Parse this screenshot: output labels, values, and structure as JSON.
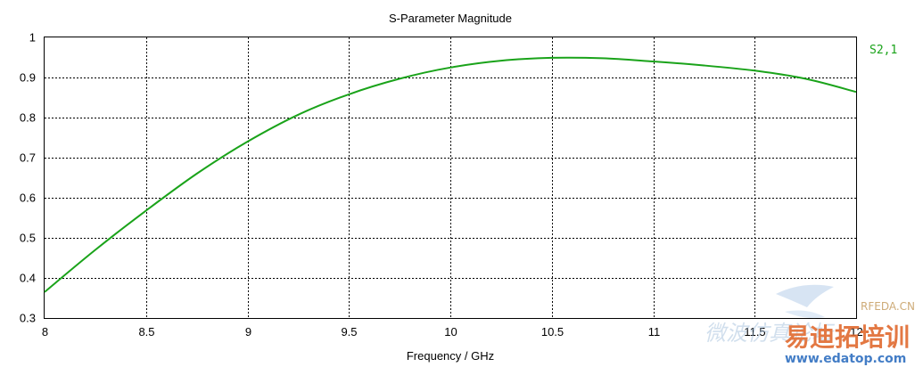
{
  "chart_data": {
    "type": "line",
    "title": "S-Parameter Magnitude",
    "xlabel": "Frequency / GHz",
    "ylabel": "",
    "xlim": [
      8,
      12
    ],
    "ylim": [
      0.3,
      1
    ],
    "xticks": [
      "8",
      "8.5",
      "9",
      "9.5",
      "10",
      "10.5",
      "11",
      "11.5",
      "12"
    ],
    "yticks": [
      "0.3",
      "0.4",
      "0.5",
      "0.6",
      "0.7",
      "0.8",
      "0.9",
      "1"
    ],
    "grid": true,
    "legend_position": "right",
    "series": [
      {
        "name": "S2,1",
        "color": "#1aa31a",
        "x": [
          8.0,
          8.25,
          8.5,
          8.75,
          9.0,
          9.25,
          9.5,
          9.75,
          10.0,
          10.25,
          10.5,
          10.75,
          11.0,
          11.25,
          11.5,
          11.75,
          12.0
        ],
        "y": [
          0.365,
          0.47,
          0.568,
          0.66,
          0.74,
          0.807,
          0.858,
          0.897,
          0.925,
          0.942,
          0.949,
          0.948,
          0.94,
          0.93,
          0.917,
          0.897,
          0.864
        ]
      }
    ]
  },
  "watermark": {
    "brand": "RFEDA.CN",
    "cn_text": "易迪拓培训",
    "url": "www.edatop.com",
    "faint_text": "微波仿真论坛"
  }
}
